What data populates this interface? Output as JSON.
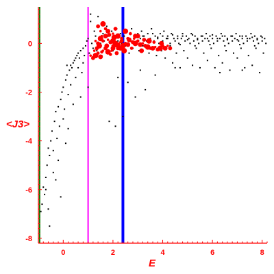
{
  "chart_data": {
    "type": "scatter",
    "title": "",
    "xlabel": "E",
    "ylabel": "<J3>",
    "xlim": [
      -1.0,
      8.2
    ],
    "ylim": [
      -8.2,
      1.5
    ],
    "x_ticks": [
      0,
      2,
      4,
      6,
      8
    ],
    "y_ticks": [
      0,
      -2,
      -4,
      -6,
      -8
    ],
    "grid": false,
    "legend": "none",
    "colors": {
      "axis": "#ff0000",
      "black_series": "#000000",
      "red_series": "#ff0000",
      "line_green": "#008000",
      "line_magenta": "#ff00ff",
      "line_blue": "#0000ff"
    },
    "vertical_lines": [
      {
        "x": -0.95,
        "color": "#008000"
      },
      {
        "x": 1.0,
        "color": "#ff00ff"
      },
      {
        "x": 2.4,
        "color": "#0000ff"
      }
    ],
    "series": [
      {
        "points": [
          [
            -0.9,
            -6.9
          ],
          [
            -0.85,
            -6.6
          ],
          [
            -0.8,
            -5.9
          ],
          [
            -0.75,
            -6.2
          ],
          [
            -0.7,
            -5.5
          ],
          [
            -0.65,
            -5.0
          ],
          [
            -0.6,
            -4.3
          ],
          [
            -0.55,
            -4.6
          ],
          [
            -0.55,
            -7.5
          ],
          [
            -0.5,
            -4.0
          ],
          [
            -0.45,
            -3.6
          ],
          [
            -0.4,
            -4.4
          ],
          [
            -0.35,
            -3.2
          ],
          [
            -0.3,
            -2.8
          ],
          [
            -0.3,
            -5.6
          ],
          [
            -0.25,
            -3.9
          ],
          [
            -0.2,
            -2.6
          ],
          [
            -0.15,
            -3.4
          ],
          [
            -0.1,
            -2.3
          ],
          [
            -0.1,
            -6.3
          ],
          [
            -0.05,
            -2.0
          ],
          [
            0.0,
            -1.8
          ],
          [
            0.0,
            -3.1
          ],
          [
            0.05,
            -2.7
          ],
          [
            0.1,
            -1.5
          ],
          [
            0.1,
            -4.1
          ],
          [
            0.15,
            -1.3
          ],
          [
            0.2,
            -2.1
          ],
          [
            0.25,
            -1.1
          ],
          [
            0.3,
            -0.9
          ],
          [
            0.3,
            -1.7
          ],
          [
            0.35,
            -1.0
          ],
          [
            0.4,
            -0.8
          ],
          [
            0.45,
            -0.7
          ],
          [
            0.5,
            -0.6
          ],
          [
            0.5,
            -1.4
          ],
          [
            0.55,
            -0.5
          ],
          [
            0.6,
            -0.4
          ],
          [
            0.65,
            -0.6
          ],
          [
            0.7,
            -0.3
          ],
          [
            0.75,
            -1.2
          ],
          [
            0.8,
            -0.2
          ],
          [
            0.85,
            -0.5
          ],
          [
            0.9,
            -0.1
          ],
          [
            0.95,
            0.1
          ],
          [
            1.0,
            0.2
          ],
          [
            1.05,
            -0.4
          ],
          [
            1.1,
            0.9
          ],
          [
            1.1,
            1.2
          ],
          [
            1.15,
            0.0
          ],
          [
            1.2,
            -0.2
          ],
          [
            1.25,
            0.5
          ],
          [
            1.3,
            0.3
          ],
          [
            1.35,
            -0.3
          ],
          [
            1.4,
            1.1
          ],
          [
            1.45,
            0.2
          ],
          [
            1.5,
            0.0
          ],
          [
            1.55,
            -0.5
          ],
          [
            1.6,
            0.4
          ],
          [
            1.65,
            0.1
          ],
          [
            1.7,
            -0.2
          ],
          [
            1.75,
            0.7
          ],
          [
            1.8,
            0.3
          ],
          [
            1.85,
            -3.2
          ],
          [
            1.9,
            0.0
          ],
          [
            1.95,
            0.5
          ],
          [
            2.0,
            -0.3
          ],
          [
            2.05,
            0.2
          ],
          [
            2.1,
            -3.4
          ],
          [
            2.15,
            0.6
          ],
          [
            2.2,
            0.1
          ],
          [
            2.25,
            -0.2
          ],
          [
            2.3,
            0.4
          ],
          [
            2.35,
            0.0
          ],
          [
            2.4,
            -3.0
          ],
          [
            2.45,
            0.3
          ],
          [
            2.5,
            -0.1
          ],
          [
            2.55,
            0.5
          ],
          [
            2.6,
            0.2
          ],
          [
            2.65,
            -0.4
          ],
          [
            2.7,
            0.1
          ],
          [
            2.75,
            0.6
          ],
          [
            2.8,
            -0.2
          ],
          [
            2.85,
            0.3
          ],
          [
            2.9,
            -2.2
          ],
          [
            2.95,
            0.0
          ],
          [
            3.0,
            0.4
          ],
          [
            3.05,
            -0.3
          ],
          [
            3.1,
            0.2
          ],
          [
            3.15,
            0.5
          ],
          [
            3.2,
            -0.1
          ],
          [
            3.25,
            0.3
          ],
          [
            3.3,
            -1.9
          ],
          [
            3.35,
            0.1
          ],
          [
            3.4,
            0.4
          ],
          [
            3.45,
            -0.4
          ],
          [
            3.5,
            0.2
          ],
          [
            3.55,
            0.6
          ],
          [
            3.6,
            -0.2
          ],
          [
            3.65,
            0.1
          ],
          [
            3.7,
            0.3
          ],
          [
            3.75,
            -0.5
          ],
          [
            3.8,
            0.2
          ],
          [
            3.85,
            0.0
          ],
          [
            3.9,
            0.4
          ],
          [
            3.95,
            -0.3
          ],
          [
            4.0,
            0.1
          ],
          [
            4.05,
            0.5
          ],
          [
            4.1,
            -0.6
          ],
          [
            4.15,
            0.2
          ],
          [
            4.2,
            0.3
          ],
          [
            4.25,
            -0.2
          ],
          [
            4.3,
            0.0
          ],
          [
            4.35,
            0.4
          ],
          [
            4.4,
            -0.8
          ],
          [
            4.45,
            0.2
          ],
          [
            4.5,
            0.1
          ],
          [
            4.55,
            -0.4
          ],
          [
            4.6,
            0.3
          ],
          [
            4.65,
            0.0
          ],
          [
            4.7,
            -1.0
          ],
          [
            4.75,
            0.2
          ],
          [
            4.8,
            0.4
          ],
          [
            4.85,
            -0.3
          ],
          [
            4.9,
            0.1
          ],
          [
            4.95,
            0.3
          ],
          [
            5.0,
            -0.6
          ],
          [
            5.05,
            0.2
          ],
          [
            5.1,
            0.0
          ],
          [
            5.15,
            0.4
          ],
          [
            5.2,
            -0.9
          ],
          [
            5.25,
            0.1
          ],
          [
            5.3,
            0.3
          ],
          [
            5.35,
            -0.2
          ],
          [
            5.4,
            0.2
          ],
          [
            5.45,
            0.0
          ],
          [
            5.5,
            -1.0
          ],
          [
            5.55,
            0.3
          ],
          [
            5.6,
            0.1
          ],
          [
            5.65,
            -0.4
          ],
          [
            5.7,
            0.2
          ],
          [
            5.75,
            0.4
          ],
          [
            5.8,
            -0.7
          ],
          [
            5.85,
            0.1
          ],
          [
            5.9,
            0.3
          ],
          [
            5.95,
            -0.2
          ],
          [
            6.0,
            0.2
          ],
          [
            6.05,
            0.0
          ],
          [
            6.1,
            -1.0
          ],
          [
            6.15,
            0.3
          ],
          [
            6.2,
            0.1
          ],
          [
            6.25,
            -0.5
          ],
          [
            6.3,
            0.2
          ],
          [
            6.35,
            0.4
          ],
          [
            6.4,
            -0.8
          ],
          [
            6.45,
            0.1
          ],
          [
            6.5,
            0.3
          ],
          [
            6.55,
            -0.3
          ],
          [
            6.6,
            0.2
          ],
          [
            6.65,
            0.0
          ],
          [
            6.7,
            -1.1
          ],
          [
            6.75,
            0.3
          ],
          [
            6.8,
            0.1
          ],
          [
            6.85,
            -0.4
          ],
          [
            6.9,
            0.2
          ],
          [
            6.95,
            0.4
          ],
          [
            7.0,
            -0.6
          ],
          [
            7.05,
            0.1
          ],
          [
            7.1,
            0.3
          ],
          [
            7.15,
            -0.2
          ],
          [
            7.2,
            0.2
          ],
          [
            7.25,
            0.0
          ],
          [
            7.3,
            -1.0
          ],
          [
            7.35,
            0.3
          ],
          [
            7.4,
            0.1
          ],
          [
            7.45,
            -0.5
          ],
          [
            7.5,
            0.2
          ],
          [
            7.55,
            0.4
          ],
          [
            7.6,
            -0.9
          ],
          [
            7.65,
            0.1
          ],
          [
            7.7,
            0.3
          ],
          [
            7.75,
            -0.2
          ],
          [
            7.8,
            0.2
          ],
          [
            7.85,
            0.0
          ],
          [
            7.9,
            -1.2
          ],
          [
            7.95,
            0.3
          ],
          [
            8.0,
            0.1
          ],
          [
            8.05,
            -0.4
          ],
          [
            8.1,
            0.2
          ],
          [
            8.15,
            0.0
          ],
          [
            3.2,
            0.3
          ],
          [
            3.6,
            0.4
          ],
          [
            4.0,
            0.3
          ],
          [
            4.4,
            0.35
          ],
          [
            4.8,
            0.3
          ],
          [
            5.2,
            0.35
          ],
          [
            5.6,
            0.3
          ],
          [
            6.0,
            0.35
          ],
          [
            6.4,
            0.3
          ],
          [
            6.8,
            0.3
          ],
          [
            7.2,
            0.3
          ],
          [
            7.6,
            0.25
          ],
          [
            8.0,
            0.25
          ],
          [
            5.0,
            0.15
          ],
          [
            5.4,
            0.15
          ],
          [
            5.8,
            0.2
          ],
          [
            6.2,
            0.2
          ],
          [
            6.6,
            0.15
          ],
          [
            7.0,
            0.15
          ],
          [
            7.4,
            0.2
          ],
          [
            7.8,
            0.15
          ],
          [
            3.4,
            0.15
          ],
          [
            3.8,
            0.25
          ],
          [
            4.2,
            0.2
          ],
          [
            4.6,
            0.2
          ],
          [
            4.3,
            -0.1
          ],
          [
            4.7,
            -0.05
          ],
          [
            5.3,
            -0.1
          ],
          [
            5.9,
            -0.05
          ],
          [
            6.5,
            -0.1
          ],
          [
            7.1,
            -0.05
          ],
          [
            7.7,
            -0.1
          ],
          [
            2.2,
            -1.4
          ],
          [
            2.6,
            -1.6
          ],
          [
            3.1,
            -1.1
          ],
          [
            3.7,
            -1.3
          ],
          [
            4.5,
            -1.0
          ],
          [
            6.3,
            -1.2
          ],
          [
            7.2,
            -1.1
          ],
          [
            1.0,
            -1.8
          ],
          [
            0.7,
            -2.2
          ],
          [
            -0.2,
            -4.8
          ],
          [
            -0.4,
            -5.3
          ],
          [
            0.2,
            -3.5
          ],
          [
            0.4,
            -2.5
          ],
          [
            -0.6,
            -6.8
          ],
          [
            -0.7,
            -6.0
          ],
          [
            0.15,
            -0.9
          ],
          [
            0.6,
            -1.0
          ],
          [
            0.8,
            -0.8
          ]
        ]
      },
      {
        "points": [
          [
            1.1,
            -0.5
          ],
          [
            1.2,
            -0.6
          ],
          [
            1.3,
            -0.5
          ],
          [
            1.4,
            -0.4
          ],
          [
            1.5,
            -0.55
          ],
          [
            1.6,
            -0.3
          ],
          [
            1.7,
            -0.2
          ],
          [
            1.8,
            -0.35
          ],
          [
            1.9,
            -0.45
          ],
          [
            2.0,
            -0.2
          ],
          [
            1.3,
            0.1
          ],
          [
            1.4,
            0.0
          ],
          [
            1.5,
            0.2
          ],
          [
            1.6,
            0.1
          ],
          [
            1.7,
            0.3
          ],
          [
            1.8,
            0.15
          ],
          [
            1.9,
            0.05
          ],
          [
            2.0,
            0.1
          ],
          [
            2.1,
            -0.1
          ],
          [
            2.2,
            -0.05
          ],
          [
            2.3,
            0.05
          ],
          [
            2.2,
            -0.2
          ],
          [
            2.1,
            0.0
          ],
          [
            2.0,
            -0.1
          ],
          [
            2.3,
            -0.2
          ],
          [
            2.25,
            -0.15
          ],
          [
            2.35,
            0.1
          ],
          [
            2.4,
            -0.1
          ],
          [
            2.5,
            0.0
          ],
          [
            2.6,
            -0.05
          ],
          [
            2.7,
            0.1
          ],
          [
            2.8,
            0.05
          ],
          [
            2.9,
            0.0
          ],
          [
            3.0,
            0.1
          ],
          [
            3.1,
            -0.05
          ],
          [
            3.2,
            0.0
          ],
          [
            3.3,
            -0.1
          ],
          [
            3.4,
            -0.15
          ],
          [
            3.5,
            -0.2
          ],
          [
            3.6,
            -0.2
          ],
          [
            3.7,
            -0.15
          ],
          [
            3.8,
            -0.25
          ],
          [
            3.9,
            -0.2
          ],
          [
            4.0,
            -0.1
          ],
          [
            4.1,
            -0.2
          ],
          [
            4.2,
            -0.1
          ],
          [
            4.3,
            -0.2
          ],
          [
            1.6,
            0.8
          ],
          [
            1.7,
            0.6
          ],
          [
            1.8,
            0.5
          ],
          [
            2.0,
            0.4
          ],
          [
            2.1,
            0.6
          ],
          [
            2.5,
            0.5
          ],
          [
            2.7,
            0.4
          ],
          [
            3.0,
            0.3
          ],
          [
            1.5,
            0.5
          ],
          [
            1.4,
            0.7
          ],
          [
            2.2,
            0.3
          ],
          [
            2.6,
            0.2
          ],
          [
            2.9,
            0.3
          ],
          [
            1.25,
            -0.3
          ],
          [
            1.35,
            -0.2
          ],
          [
            1.45,
            -0.1
          ],
          [
            1.55,
            -0.35
          ],
          [
            1.75,
            -0.1
          ],
          [
            1.95,
            -0.3
          ],
          [
            2.15,
            -0.4
          ],
          [
            2.45,
            -0.3
          ],
          [
            2.75,
            -0.2
          ],
          [
            3.15,
            -0.3
          ],
          [
            1.55,
            0.3
          ],
          [
            1.85,
            0.35
          ],
          [
            2.05,
            0.25
          ],
          [
            2.35,
            0.2
          ],
          [
            2.65,
            0.15
          ],
          [
            2.85,
            0.2
          ],
          [
            3.25,
            0.15
          ],
          [
            3.45,
            0.1
          ],
          [
            3.65,
            0.05
          ],
          [
            3.95,
            0.0
          ]
        ]
      }
    ]
  }
}
